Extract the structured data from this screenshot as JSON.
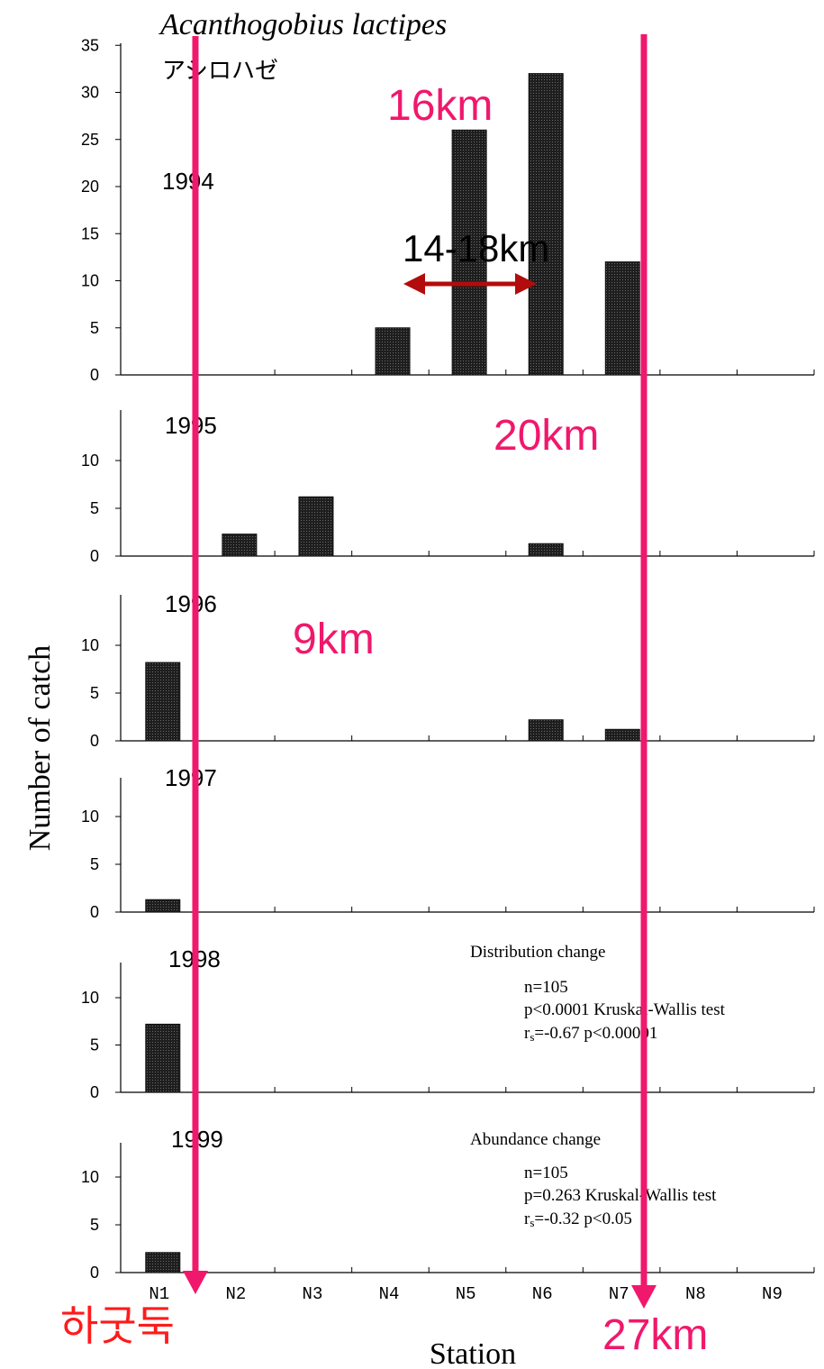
{
  "title_species": "Acanthogobius lactipes",
  "title_japanese": "アシロハゼ",
  "ylabel": "Number of catch",
  "xlabel": "Station",
  "stations": [
    "N1",
    "N2",
    "N3",
    "N4",
    "N5",
    "N6",
    "N7",
    "N8",
    "N9"
  ],
  "annotations": {
    "km16": "16km",
    "km20": "20km",
    "km9": "9km",
    "range": "14-18km",
    "estuary_barrage": "하굿둑",
    "km27": "27km"
  },
  "stats": {
    "distribution": {
      "heading": "Distribution change",
      "n": "n=105",
      "p": "p<0.0001  Kruskal-Wallis test",
      "rs_prefix": "r",
      "rs_sub": "s",
      "rs_rest": "=-0.67   p<0.00001"
    },
    "abundance": {
      "heading": "Abundance change",
      "n": "n=105",
      "p": "p=0.263  Kruskal-Wallis test",
      "rs_prefix": "r",
      "rs_sub": "s",
      "rs_rest": "=-0.32   p<0.05"
    }
  },
  "colors": {
    "bar": "#1e1e1e",
    "arrow_magenta": "#f0186c",
    "km_text": "#f0186c",
    "range_arrow": "#b30c0c",
    "korean_text": "#ff1a1a",
    "axis": "#000000"
  },
  "chart_data": {
    "type": "bar",
    "categories": [
      "N1",
      "N2",
      "N3",
      "N4",
      "N5",
      "N6",
      "N7",
      "N8",
      "N9"
    ],
    "xlabel": "Station",
    "ylabel": "Number of catch",
    "panels": [
      {
        "year": "1994",
        "values": [
          0,
          0,
          0,
          5,
          26,
          32,
          12,
          0,
          0
        ],
        "yticks": [
          0,
          5,
          10,
          15,
          20,
          25,
          30,
          35
        ],
        "ylim": [
          0,
          35
        ]
      },
      {
        "year": "1995",
        "values": [
          0,
          2.3,
          6.2,
          0,
          0,
          1.3,
          0,
          0,
          0
        ],
        "yticks": [
          0,
          5,
          10
        ],
        "ylim": [
          0,
          15
        ]
      },
      {
        "year": "1996",
        "values": [
          8.2,
          0,
          0,
          0,
          0,
          2.2,
          1.2,
          0,
          0
        ],
        "yticks": [
          0,
          5,
          10
        ],
        "ylim": [
          0,
          15
        ]
      },
      {
        "year": "1997",
        "values": [
          1.3,
          0,
          0,
          0,
          0,
          0,
          0,
          0,
          0
        ],
        "yticks": [
          0,
          5,
          10
        ],
        "ylim": [
          0,
          15
        ]
      },
      {
        "year": "1998",
        "values": [
          7.2,
          0,
          0,
          0,
          0,
          0,
          0,
          0,
          0
        ],
        "yticks": [
          0,
          5,
          10
        ],
        "ylim": [
          0,
          15
        ]
      },
      {
        "year": "1999",
        "values": [
          2.1,
          0,
          0,
          0,
          0,
          0,
          0,
          0,
          0
        ],
        "yticks": [
          0,
          5,
          10
        ],
        "ylim": [
          0,
          15
        ]
      }
    ]
  }
}
